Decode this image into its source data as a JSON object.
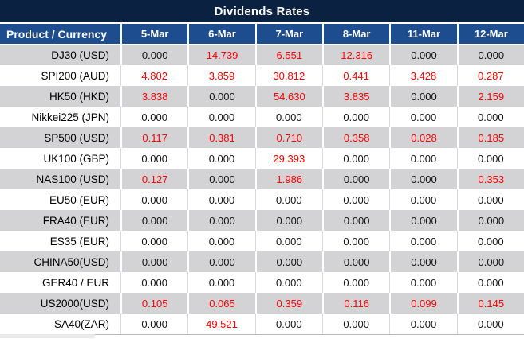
{
  "chart_data": {
    "type": "table",
    "title": "Dividends Rates",
    "columns": [
      "Product / Currency",
      "5-Mar",
      "6-Mar",
      "7-Mar",
      "8-Mar",
      "11-Mar",
      "12-Mar"
    ],
    "categories": [
      "5-Mar",
      "6-Mar",
      "7-Mar",
      "8-Mar",
      "11-Mar",
      "12-Mar"
    ],
    "rows": [
      {
        "product": "DJ30 (USD)",
        "values": [
          "0.000",
          "14.739",
          "6.551",
          "12.316",
          "0.000",
          "0.000"
        ]
      },
      {
        "product": "SPI200 (AUD)",
        "values": [
          "4.802",
          "3.859",
          "30.812",
          "0.441",
          "3.428",
          "0.287"
        ]
      },
      {
        "product": "HK50 (HKD)",
        "values": [
          "3.838",
          "0.000",
          "54.630",
          "3.835",
          "0.000",
          "2.159"
        ]
      },
      {
        "product": "Nikkei225 (JPN)",
        "values": [
          "0.000",
          "0.000",
          "0.000",
          "0.000",
          "0.000",
          "0.000"
        ]
      },
      {
        "product": "SP500 (USD)",
        "values": [
          "0.117",
          "0.381",
          "0.710",
          "0.358",
          "0.028",
          "0.185"
        ]
      },
      {
        "product": "UK100 (GBP)",
        "values": [
          "0.000",
          "0.000",
          "29.393",
          "0.000",
          "0.000",
          "0.000"
        ]
      },
      {
        "product": "NAS100 (USD)",
        "values": [
          "0.127",
          "0.000",
          "1.986",
          "0.000",
          "0.000",
          "0.353"
        ]
      },
      {
        "product": "EU50 (EUR)",
        "values": [
          "0.000",
          "0.000",
          "0.000",
          "0.000",
          "0.000",
          "0.000"
        ]
      },
      {
        "product": "FRA40 (EUR)",
        "values": [
          "0.000",
          "0.000",
          "0.000",
          "0.000",
          "0.000",
          "0.000"
        ]
      },
      {
        "product": "ES35 (EUR)",
        "values": [
          "0.000",
          "0.000",
          "0.000",
          "0.000",
          "0.000",
          "0.000"
        ]
      },
      {
        "product": "CHINA50(USD)",
        "values": [
          "0.000",
          "0.000",
          "0.000",
          "0.000",
          "0.000",
          "0.000"
        ]
      },
      {
        "product": "GER40 / EUR",
        "values": [
          "0.000",
          "0.000",
          "0.000",
          "0.000",
          "0.000",
          "0.000"
        ]
      },
      {
        "product": "US2000(USD)",
        "values": [
          "0.105",
          "0.065",
          "0.359",
          "0.116",
          "0.099",
          "0.145"
        ]
      },
      {
        "product": "SA40(ZAR)",
        "values": [
          "0.000",
          "49.521",
          "0.000",
          "0.000",
          "0.000",
          "0.000"
        ]
      }
    ],
    "value_format": "3 decimal places",
    "highlight_rule": "non-zero values rendered in red, zero values in black",
    "layout_hints": {
      "striped_rows": true,
      "first_data_row_shaded": true
    }
  },
  "header": {
    "product_column_label": "Product / Currency"
  },
  "colors": {
    "title_bar_bg": "#0B2142",
    "header_row_bg": "#1D4C8F",
    "header_text": "#FFFFFF",
    "alt_row_bg": "#D3D3D6",
    "zero_value_text": "#141414",
    "nonzero_value_text": "#FF0000"
  }
}
